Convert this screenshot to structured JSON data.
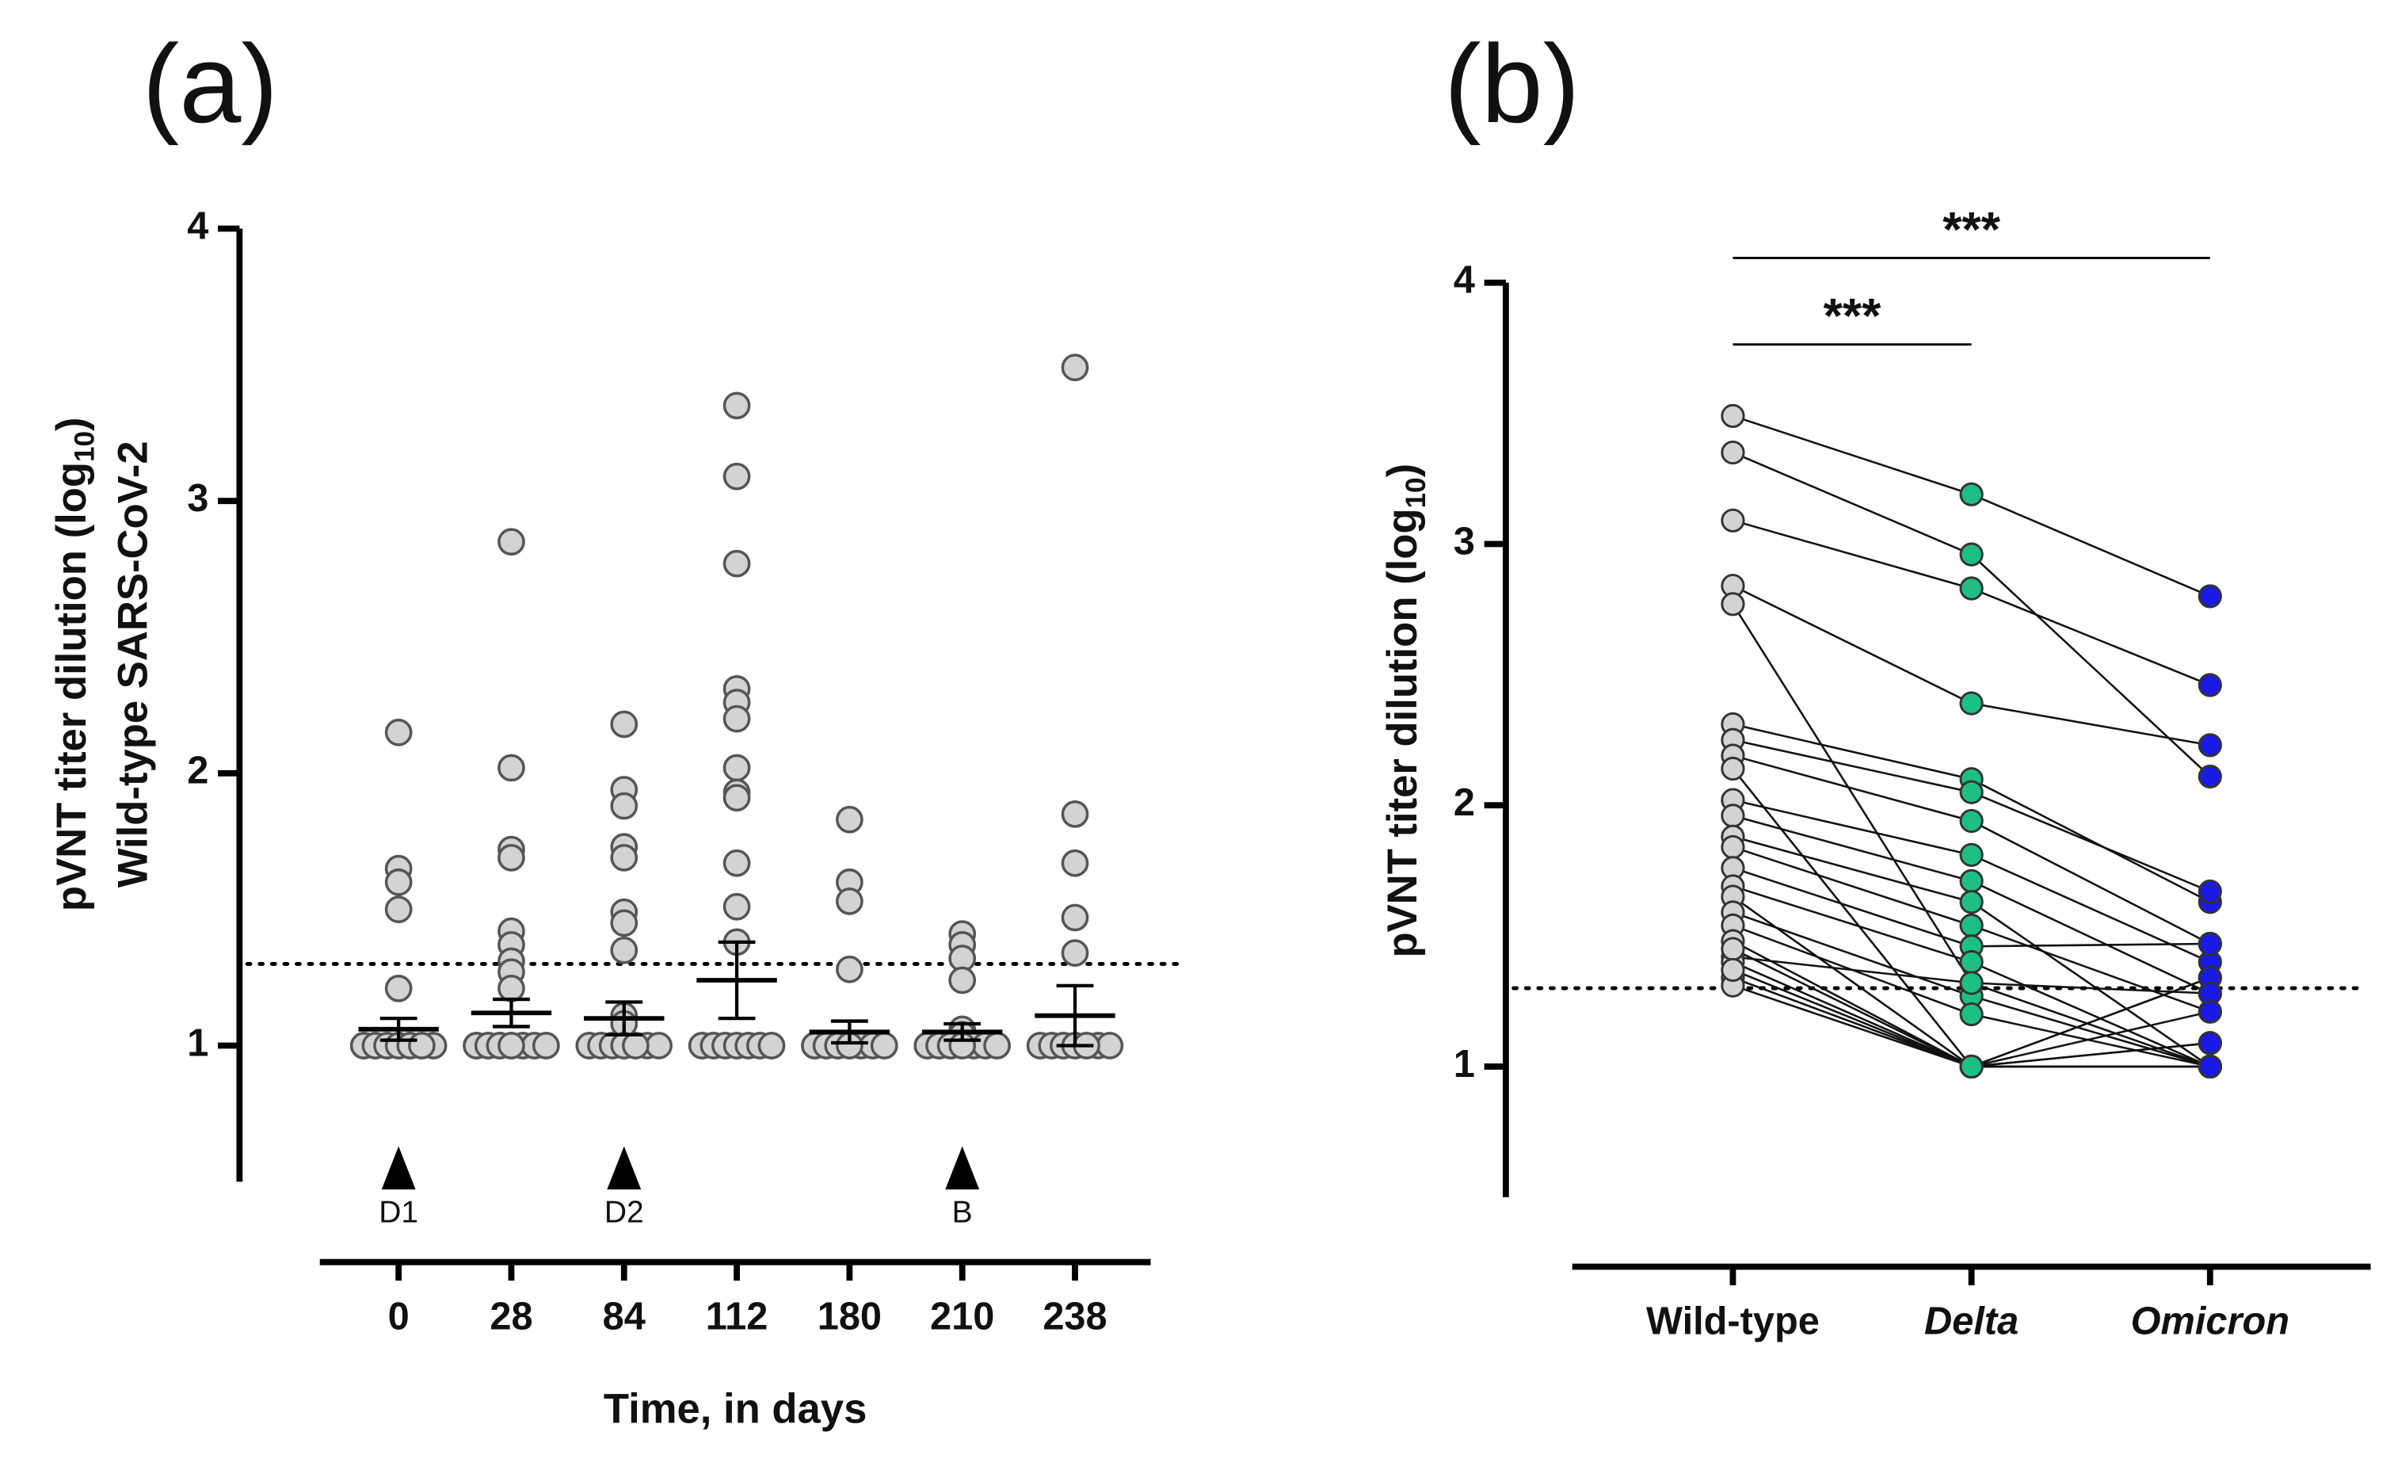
{
  "chart_data": [
    {
      "type": "dotplot",
      "title": "(a)",
      "ylabel": [
        "pVNT titer dilution (log",
        "10",
        ")"
      ],
      "ylabel2": "Wild-type SARS-CoV-2",
      "xlabel": "Time, in days",
      "categories": [
        "0",
        "28",
        "84",
        "112",
        "180",
        "210",
        "238"
      ],
      "values": [
        [
          2.15,
          1.65,
          1.6,
          1.5,
          1.21,
          1,
          1,
          1,
          1,
          1,
          1,
          1,
          1,
          1,
          1,
          1,
          1,
          1,
          1,
          1,
          1,
          1,
          1,
          1,
          1
        ],
        [
          2.85,
          2.02,
          1.72,
          1.69,
          1.42,
          1.37,
          1.31,
          1.27,
          1.21,
          1,
          1,
          1,
          1,
          1,
          1,
          1,
          1,
          1,
          1,
          1,
          1,
          1,
          1,
          1,
          1,
          1,
          1
        ],
        [
          2.18,
          1.94,
          1.88,
          1.73,
          1.69,
          1.49,
          1.45,
          1.35,
          1.11,
          1.08,
          1,
          1,
          1,
          1,
          1,
          1,
          1,
          1,
          1,
          1,
          1,
          1
        ],
        [
          3.35,
          3.09,
          2.77,
          2.31,
          2.26,
          2.2,
          2.02,
          1.93,
          1.91,
          1.67,
          1.51,
          1.38,
          1,
          1,
          1,
          1,
          1,
          1,
          1,
          1,
          1,
          1,
          1,
          1,
          1,
          1
        ],
        [
          1.83,
          1.6,
          1.53,
          1.28,
          1,
          1,
          1,
          1,
          1,
          1,
          1,
          1,
          1,
          1,
          1,
          1,
          1,
          1,
          1,
          1,
          1,
          1
        ],
        [
          1.41,
          1.37,
          1.32,
          1.24,
          1.06,
          1.04,
          1,
          1,
          1,
          1,
          1,
          1,
          1,
          1,
          1,
          1,
          1,
          1,
          1,
          1,
          1,
          1,
          1,
          1
        ],
        [
          3.49,
          1.85,
          1.67,
          1.47,
          1.34,
          1,
          1,
          1,
          1,
          1,
          1,
          1,
          1,
          1,
          1,
          1,
          1
        ]
      ],
      "mean": [
        1.06,
        1.12,
        1.1,
        1.24,
        1.05,
        1.05,
        1.11
      ],
      "sem": [
        0.04,
        0.05,
        0.06,
        0.14,
        0.04,
        0.03,
        0.11
      ],
      "color": "#d3d3d3",
      "threshold": 1.3,
      "markers": [
        {
          "at": "0",
          "label": "D1"
        },
        {
          "at": "84",
          "label": "D2"
        },
        {
          "at": "210",
          "label": "B"
        }
      ],
      "ylim": [
        0.5,
        4
      ],
      "yticks": [
        1,
        2,
        3,
        4
      ]
    },
    {
      "type": "paired",
      "title": "(b)",
      "ylabel": [
        "pVNT titer dilution (log",
        "10",
        ")"
      ],
      "categories": [
        "Wild-type",
        "Delta",
        "Omicron"
      ],
      "category_styles": [
        "normal",
        "italic",
        "italic"
      ],
      "colors": [
        "#d3d3d3",
        "#1dbf85",
        "#1a1ae6"
      ],
      "subjects": [
        [
          3.49,
          3.19,
          2.8
        ],
        [
          3.35,
          2.96,
          2.11
        ],
        [
          3.09,
          2.83,
          2.46
        ],
        [
          2.84,
          2.39,
          2.23
        ],
        [
          2.77,
          1.32,
          1
        ],
        [
          2.31,
          2.1,
          1.63
        ],
        [
          2.25,
          2.05,
          1.67
        ],
        [
          2.19,
          1.94,
          1.47
        ],
        [
          2.14,
          1,
          1.34
        ],
        [
          2.02,
          1.81,
          1.4
        ],
        [
          1.96,
          1.71,
          1.28
        ],
        [
          1.88,
          1.63,
          1
        ],
        [
          1.84,
          1.54,
          1.21
        ],
        [
          1.76,
          1.46,
          1.47
        ],
        [
          1.69,
          1.4,
          1
        ],
        [
          1.65,
          1,
          1.09
        ],
        [
          1.59,
          1.27,
          1
        ],
        [
          1.54,
          1.2,
          1
        ],
        [
          1.48,
          1,
          1.34
        ],
        [
          1.42,
          1.32,
          1.28
        ],
        [
          1.4,
          1,
          1
        ],
        [
          1.34,
          1,
          1.21
        ],
        [
          1.31,
          1,
          1
        ],
        [
          1.45,
          1,
          1
        ],
        [
          1.37,
          1,
          1.09
        ]
      ],
      "threshold": 1.3,
      "significance": [
        {
          "from": "Wild-type",
          "to": "Delta",
          "label": "***"
        },
        {
          "from": "Wild-type",
          "to": "Omicron",
          "label": "***"
        }
      ],
      "ylim": [
        0.5,
        4
      ],
      "yticks": [
        1,
        2,
        3,
        4
      ]
    }
  ]
}
